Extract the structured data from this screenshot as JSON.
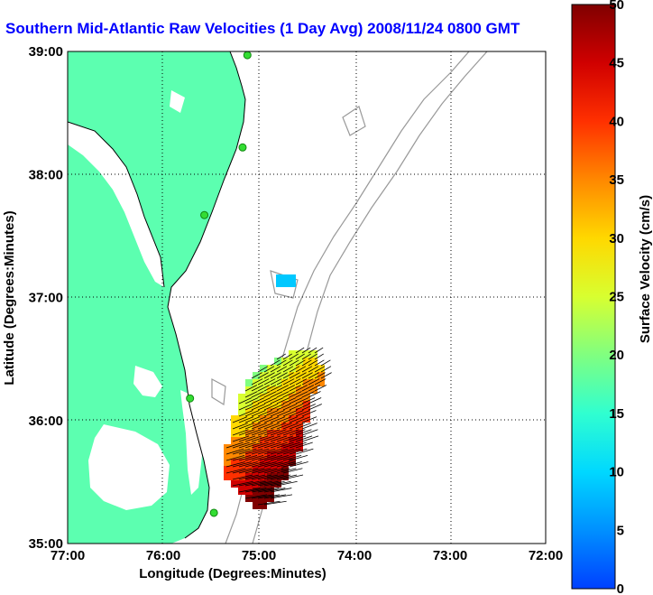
{
  "title": "Southern Mid-Atlantic Raw Velocities (1 Day Avg) 2008/11/24 0800 GMT",
  "xlabel": "Longitude (Degrees:Minutes)",
  "ylabel": "Latitude (Degrees:Minutes)",
  "colorbar_label": "Surface Velocity (cm/s)",
  "colors": {
    "title": "#0000ff",
    "land": "#5cffb0",
    "sea": "#ffffff",
    "bathymetry": "#999999",
    "station": "#33dd33",
    "vector": "#000000"
  },
  "chart_data": {
    "type": "heatmap",
    "title": "Southern Mid-Atlantic Raw Velocities (1 Day Avg) 2008/11/24 0800 GMT",
    "xlabel": "Longitude (Degrees:Minutes)",
    "ylabel": "Latitude (Degrees:Minutes)",
    "x_ticks": [
      "77:00",
      "76:00",
      "75:00",
      "74:00",
      "73:00",
      "72:00"
    ],
    "y_ticks": [
      "39:00",
      "38:00",
      "37:00",
      "36:00",
      "35:00"
    ],
    "xlim": [
      -77,
      -72
    ],
    "ylim": [
      35,
      39
    ],
    "grid": true,
    "colorbar": {
      "label": "Surface Velocity (cm/s)",
      "min": 0,
      "max": 50,
      "ticks": [
        0,
        5,
        10,
        15,
        20,
        25,
        30,
        35,
        40,
        45,
        50
      ]
    },
    "stations": [
      {
        "lon": -75.12,
        "lat": 38.97
      },
      {
        "lon": -75.17,
        "lat": 38.22
      },
      {
        "lon": -75.57,
        "lat": 37.67
      },
      {
        "lon": -75.72,
        "lat": 36.18
      },
      {
        "lon": -75.47,
        "lat": 35.25
      }
    ]
  }
}
